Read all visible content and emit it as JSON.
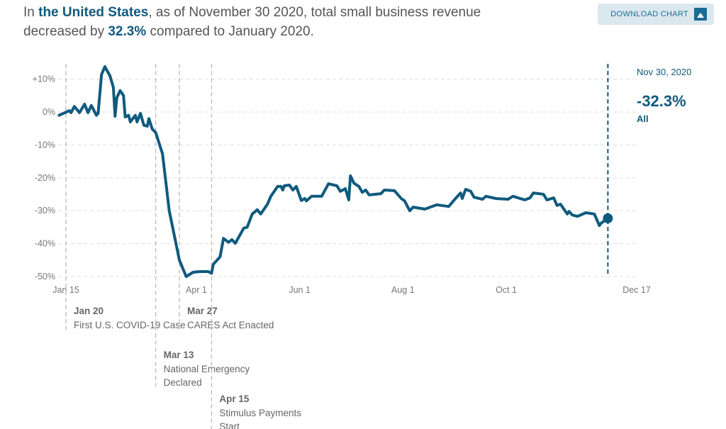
{
  "headline": {
    "prefix": "In ",
    "region": "the United States",
    "middle": ", as of November 30 2020, total small business revenue decreased by ",
    "change": "32.3%",
    "suffix": " compared to January 2020."
  },
  "toolbar": {
    "download_label": "DOWNLOAD CHART",
    "download_icon": "image-icon"
  },
  "chart_data": {
    "type": "line",
    "title": "",
    "xlabel": "",
    "ylabel": "",
    "color": "#105a7e",
    "xlim": [
      "2020-01-15",
      "2020-12-17"
    ],
    "ylim": [
      -50,
      10
    ],
    "grid": true,
    "x_ticks": [
      {
        "date": "2020-01-15",
        "label": "Jan 15"
      },
      {
        "date": "2020-04-01",
        "label": "Apr 1"
      },
      {
        "date": "2020-06-01",
        "label": "Jun 1"
      },
      {
        "date": "2020-08-01",
        "label": "Aug 1"
      },
      {
        "date": "2020-10-01",
        "label": "Oct 1"
      },
      {
        "date": "2020-12-17",
        "label": "Dec 17"
      }
    ],
    "y_ticks": [
      {
        "value": 10,
        "label": "+10%"
      },
      {
        "value": 0,
        "label": "0%"
      },
      {
        "value": -10,
        "label": "-10%"
      },
      {
        "value": -20,
        "label": "-20%"
      },
      {
        "value": -30,
        "label": "-30%"
      },
      {
        "value": -40,
        "label": "-40%"
      },
      {
        "value": -50,
        "label": "-50%"
      }
    ],
    "series": [
      {
        "x": [
          "2020-01-11",
          "2020-01-17",
          "2020-01-18",
          "2020-01-20",
          "2020-01-23",
          "2020-01-26",
          "2020-01-28",
          "2020-01-30",
          "2020-02-02",
          "2020-02-03",
          "2020-02-05",
          "2020-02-07",
          "2020-02-10",
          "2020-02-12",
          "2020-02-13",
          "2020-02-14",
          "2020-02-16",
          "2020-02-18",
          "2020-02-19",
          "2020-02-21",
          "2020-02-22",
          "2020-02-25",
          "2020-02-26",
          "2020-02-28",
          "2020-03-01",
          "2020-03-03",
          "2020-03-04",
          "2020-03-06",
          "2020-03-08",
          "2020-03-12",
          "2020-03-16",
          "2020-03-22",
          "2020-03-26",
          "2020-03-30",
          "2020-04-03",
          "2020-04-08",
          "2020-04-10",
          "2020-04-11",
          "2020-04-15",
          "2020-04-17",
          "2020-04-20",
          "2020-04-22",
          "2020-04-24",
          "2020-04-29",
          "2020-05-01",
          "2020-05-04",
          "2020-05-07",
          "2020-05-09",
          "2020-05-13",
          "2020-05-15",
          "2020-05-19",
          "2020-05-21",
          "2020-05-22",
          "2020-05-23",
          "2020-05-26",
          "2020-05-28",
          "2020-05-30",
          "2020-06-02",
          "2020-06-04",
          "2020-06-05",
          "2020-06-08",
          "2020-06-14",
          "2020-06-18",
          "2020-06-23",
          "2020-06-25",
          "2020-06-28",
          "2020-06-30",
          "2020-07-01",
          "2020-07-03",
          "2020-07-06",
          "2020-07-08",
          "2020-07-10",
          "2020-07-12",
          "2020-07-19",
          "2020-07-21",
          "2020-07-27",
          "2020-07-31",
          "2020-08-02",
          "2020-08-05",
          "2020-08-07",
          "2020-08-14",
          "2020-08-21",
          "2020-08-28",
          "2020-09-01",
          "2020-09-04",
          "2020-09-05",
          "2020-09-07",
          "2020-09-10",
          "2020-09-12",
          "2020-09-17",
          "2020-09-19",
          "2020-09-25",
          "2020-10-02",
          "2020-10-05",
          "2020-10-12",
          "2020-10-15",
          "2020-10-17",
          "2020-10-23",
          "2020-10-25",
          "2020-10-29",
          "2020-10-31",
          "2020-11-02",
          "2020-11-06",
          "2020-11-07",
          "2020-11-09",
          "2020-11-12",
          "2020-11-17",
          "2020-11-22",
          "2020-11-25",
          "2020-11-26",
          "2020-11-30"
        ],
        "y": [
          -1,
          0.4,
          -0.2,
          1.7,
          -0.2,
          2.4,
          -0.2,
          2,
          -1,
          -0.4,
          11.4,
          13.8,
          11,
          7.5,
          -1.3,
          4.3,
          6.5,
          5,
          -1.5,
          -1,
          -3,
          -1,
          -3,
          -0.4,
          -4,
          -4.3,
          -2,
          -5.2,
          -6.2,
          -12.7,
          -30,
          -45,
          -50,
          -48.7,
          -48.5,
          -48.5,
          -49,
          -46.3,
          -44,
          -38.4,
          -39.6,
          -38.8,
          -39.9,
          -35.3,
          -35,
          -31,
          -29.7,
          -31,
          -28,
          -25.6,
          -22.6,
          -22.6,
          -23.7,
          -22.4,
          -22.2,
          -23.7,
          -22.6,
          -26.9,
          -26.3,
          -27,
          -25.6,
          -25.6,
          -21.8,
          -22.4,
          -24.1,
          -23.3,
          -26.7,
          -19.4,
          -21.6,
          -22.6,
          -24.4,
          -23.7,
          -25.2,
          -24.8,
          -23.7,
          -23.9,
          -26.3,
          -27,
          -30,
          -28.9,
          -29.5,
          -28.2,
          -28.7,
          -26.3,
          -24.6,
          -26.3,
          -23.5,
          -24.1,
          -25.9,
          -26.5,
          -25.6,
          -26.3,
          -26.5,
          -25.6,
          -26.7,
          -26.1,
          -24.6,
          -25,
          -26.7,
          -26.1,
          -28.4,
          -28,
          -31,
          -30.2,
          -31.3,
          -31.7,
          -30.6,
          -31,
          -34.5,
          -33.8,
          -32.3
        ]
      }
    ],
    "highlight": {
      "date": "2020-11-30",
      "date_label": "Nov 30, 2020",
      "value": -32.3,
      "value_label": "-32.3%",
      "series_label": "All"
    },
    "annotations": [
      {
        "date": "2020-01-20",
        "date_label": "Jan 20",
        "lines": [
          "First U.S. COVID-19 Case"
        ]
      },
      {
        "date": "2020-03-13",
        "date_label": "Mar 13",
        "lines": [
          "National Emergency",
          "Declared"
        ]
      },
      {
        "date": "2020-03-27",
        "date_label": "Mar 27",
        "lines": [
          "CARES Act Enacted"
        ]
      },
      {
        "date": "2020-04-15",
        "date_label": "Apr 15",
        "lines": [
          "Stimulus Payments",
          "Start"
        ]
      }
    ]
  }
}
